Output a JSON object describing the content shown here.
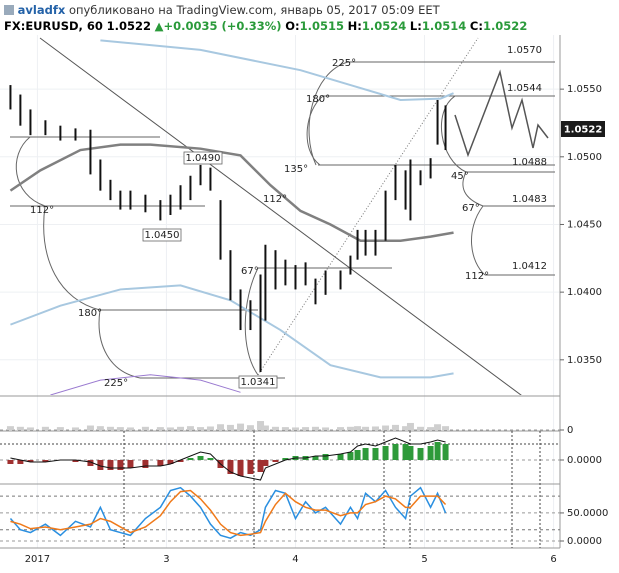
{
  "header": {
    "author": "avladfx",
    "published": "опубликовано на TradingView.com, январь 05, 2017 05:09 EET",
    "symbol": "FX:EURUSD, 60",
    "last": "1.0522",
    "change": "+0.0035 (+0.33%)",
    "ohlc": [
      {
        "label": "O:",
        "value": "1.0515"
      },
      {
        "label": "H:",
        "value": "1.0524"
      },
      {
        "label": "L:",
        "value": "1.0514"
      },
      {
        "label": "C:",
        "value": "1.0522"
      }
    ]
  },
  "chart_data": [
    {
      "type": "hilo",
      "color": "#111111",
      "x": [
        1.791,
        1.868,
        1.946,
        2.062,
        2.178,
        2.295,
        2.411,
        2.488,
        2.566,
        2.643,
        2.721,
        2.837,
        2.953,
        3.031,
        3.109,
        3.186,
        3.264,
        3.341,
        3.419,
        3.496,
        3.574,
        3.651,
        3.729,
        3.767,
        3.845,
        3.922,
        4.0,
        4.078,
        4.155,
        4.233,
        4.349,
        4.426,
        4.481,
        4.543,
        4.62,
        4.698,
        4.775,
        4.853,
        4.891,
        4.969,
        5.047,
        5.101,
        5.163
      ],
      "high": [
        1.0553,
        1.0546,
        1.0535,
        1.0527,
        1.0523,
        1.0521,
        1.052,
        1.0498,
        1.0483,
        1.0475,
        1.0475,
        1.0472,
        1.0468,
        1.0472,
        1.0479,
        1.0486,
        1.0494,
        1.0492,
        1.0468,
        1.0431,
        1.0402,
        1.0394,
        1.0413,
        1.0435,
        1.0431,
        1.0424,
        1.042,
        1.0422,
        1.041,
        1.0416,
        1.0416,
        1.0427,
        1.0446,
        1.0446,
        1.0446,
        1.0475,
        1.0494,
        1.049,
        1.0498,
        1.049,
        1.0499,
        1.0542,
        1.0538
      ],
      "low": [
        1.0535,
        1.0523,
        1.0516,
        1.0516,
        1.0512,
        1.0512,
        1.0487,
        1.0475,
        1.0468,
        1.0461,
        1.0461,
        1.0459,
        1.0453,
        1.0457,
        1.0461,
        1.0468,
        1.0479,
        1.0475,
        1.0424,
        1.0394,
        1.0372,
        1.0372,
        1.0341,
        1.0379,
        1.0402,
        1.0405,
        1.0402,
        1.0405,
        1.0391,
        1.0398,
        1.0402,
        1.0413,
        1.0424,
        1.0427,
        1.0427,
        1.0438,
        1.0468,
        1.0461,
        1.0453,
        1.0479,
        1.0484,
        1.0509,
        1.0505
      ],
      "xlim": [
        1.71,
        6.05
      ],
      "xticks": [
        {
          "value": 2,
          "label": "2017"
        },
        3,
        4,
        5,
        6
      ],
      "ylim": [
        1.0324,
        1.059
      ],
      "yticks": [
        {
          "value": 1.035,
          "label": "1.0350"
        },
        {
          "value": 1.04,
          "label": "1.0400"
        },
        {
          "value": 1.045,
          "label": "1.0450"
        },
        {
          "value": 1.05,
          "label": "1.0500"
        },
        {
          "value": 1.055,
          "label": "1.0550"
        }
      ],
      "overlays": [
        {
          "color": "#808080",
          "width": 2.5,
          "x": [
            1.791,
            2.023,
            2.333,
            2.643,
            2.876,
            3.264,
            3.574,
            3.806,
            4.039,
            4.271,
            4.504,
            4.814,
            5.047,
            5.225
          ],
          "values": [
            1.0475,
            1.049,
            1.0505,
            1.0509,
            1.0509,
            1.0506,
            1.0501,
            1.0479,
            1.046,
            1.045,
            1.0438,
            1.0438,
            1.0441,
            1.0444
          ]
        },
        {
          "color": "#a8c8e0",
          "width": 2,
          "x": [
            2.488,
            3.264,
            4.039,
            4.426,
            4.814,
            5.124,
            5.225
          ],
          "values": [
            1.0586,
            1.0579,
            1.0564,
            1.0553,
            1.0542,
            1.0543,
            1.0547
          ]
        },
        {
          "color": "#a8c8e0",
          "width": 2,
          "x": [
            1.791,
            2.178,
            2.643,
            3.109,
            3.496,
            3.884,
            4.271,
            4.659,
            5.047,
            5.225
          ],
          "values": [
            1.0376,
            1.039,
            1.0402,
            1.0405,
            1.0394,
            1.0372,
            1.0346,
            1.0337,
            1.0337,
            1.034
          ]
        },
        {
          "color": "#9a7ad0",
          "width": 1,
          "x": [
            2.101,
            2.488,
            2.876,
            3.264,
            3.574
          ],
          "values": [
            1.0324,
            1.0335,
            1.0339,
            1.0335,
            1.0326
          ]
        }
      ],
      "annotations": [
        "1.0570",
        "1.0544",
        "1.0488",
        "1.0483",
        "1.0412",
        "1.0490",
        "1.0450",
        "1.0341",
        "225°",
        "180°",
        "135°",
        "112°",
        "67°",
        "45°",
        "67°",
        "112°",
        "112°",
        "180°",
        "225°"
      ]
    },
    {
      "type": "bar",
      "color": "#cfcfcf",
      "ylim": [
        0,
        100
      ],
      "yticks": [
        0
      ],
      "values": [
        12,
        10,
        8,
        10,
        9,
        8,
        14,
        12,
        10,
        9,
        8,
        10,
        9,
        8,
        10,
        12,
        9,
        11,
        18,
        16,
        20,
        15,
        28,
        14,
        10,
        9,
        8,
        9,
        10,
        8,
        9,
        10,
        12,
        10,
        11,
        14,
        16,
        12,
        22,
        10,
        9,
        18,
        12
      ]
    },
    {
      "type": "macd",
      "pos_color": "#2e9a3a",
      "neg_color": "#a03030",
      "line_color": "#111111",
      "ylim": [
        -0.0011,
        0.0014
      ],
      "yticks": [
        {
          "value": 0,
          "label": "0.0000"
        }
      ],
      "values": [
        -0.0002,
        -0.0002,
        -0.0001,
        -0.0001,
        0,
        -0.0001,
        -0.0003,
        -0.0005,
        -0.0005,
        -0.0005,
        -0.0004,
        -0.0004,
        -0.0003,
        -0.0002,
        -0.0001,
        0.0001,
        0.0002,
        0.0001,
        -0.0004,
        -0.0007,
        -0.0008,
        -0.0007,
        -0.0006,
        -0.0003,
        -0.0001,
        0.0001,
        0.0002,
        0.0002,
        0.0002,
        0.0003,
        0.0003,
        0.0004,
        0.0005,
        0.0006,
        0.0006,
        0.0007,
        0.0008,
        0.0008,
        0.0007,
        0.0006,
        0.0007,
        0.0009,
        0.0008
      ],
      "line": [
        0.0001,
        0,
        -0.0001,
        -0.0001,
        0,
        0,
        -0.0001,
        -0.0003,
        -0.0004,
        -0.0004,
        -0.0004,
        -0.0003,
        -0.0003,
        -0.0002,
        0,
        0.0002,
        0.0004,
        0.0003,
        -0.0002,
        -0.0006,
        -0.0008,
        -0.0009,
        -0.001,
        -0.0004,
        -0.0002,
        0,
        0.0001,
        0.0001,
        0.0002,
        0.0002,
        0.0003,
        0.0004,
        0.0007,
        0.0008,
        0.0007,
        0.0009,
        0.0011,
        0.0009,
        0.0008,
        0.0008,
        0.0009,
        0.001,
        0.0009
      ]
    },
    {
      "type": "line",
      "ylim": [
        -12.5,
        98
      ],
      "yticks": [
        {
          "value": 0,
          "label": "0.0000"
        },
        {
          "value": 50,
          "label": "50.0000"
        }
      ],
      "hlines": [
        20,
        80
      ],
      "series": [
        {
          "color": "#2a8fe0",
          "values": [
            40,
            20,
            15,
            30,
            10,
            35,
            25,
            60,
            20,
            15,
            10,
            40,
            60,
            90,
            95,
            80,
            60,
            30,
            10,
            5,
            15,
            10,
            20,
            60,
            90,
            85,
            40,
            70,
            50,
            60,
            30,
            60,
            40,
            85,
            70,
            90,
            60,
            40,
            80,
            95,
            60,
            85,
            50
          ]
        },
        {
          "color": "#f07a1a",
          "values": [
            35,
            30,
            22,
            25,
            20,
            25,
            30,
            40,
            35,
            25,
            15,
            25,
            45,
            70,
            88,
            90,
            75,
            55,
            30,
            15,
            10,
            12,
            15,
            35,
            65,
            85,
            70,
            60,
            55,
            55,
            45,
            50,
            50,
            65,
            70,
            80,
            75,
            60,
            60,
            80,
            80,
            80,
            65
          ]
        }
      ]
    }
  ]
}
